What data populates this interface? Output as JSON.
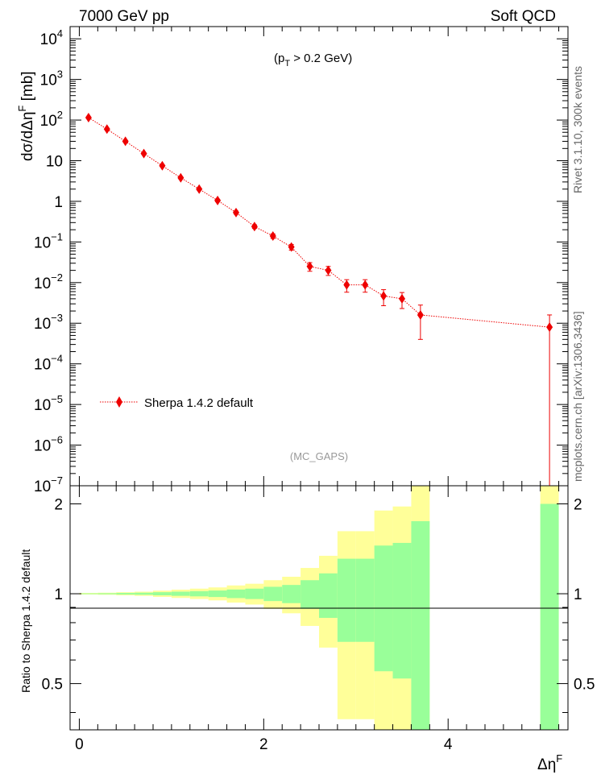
{
  "header": {
    "left": "7000 GeV pp",
    "right": "Soft QCD"
  },
  "annotations": {
    "cut_prefix": "(p",
    "cut_sub": "T",
    "cut_suffix": " > 0.2 GeV)",
    "analysis": "(MC_GAPS)",
    "side_rivet": "Rivet 3.1.10,  300k events",
    "side_mcplots": "mcplots.cern.ch [arXiv:1306.3436]"
  },
  "axes": {
    "top_ylabel": "dσ/dΔη",
    "top_ylabel_sup": "F",
    "top_ylabel_unit": " [mb]",
    "bottom_ylabel": "Ratio to Sherpa 1.4.2 default",
    "xlabel": "Δη",
    "xlabel_sup": "F"
  },
  "colors": {
    "series": "#ee0000",
    "band_inner": "#99ff99",
    "band_outer": "#ffff99"
  },
  "chart_data": [
    {
      "type": "scatter",
      "panel": "main",
      "yscale": "log",
      "xlim": [
        -0.1,
        5.3
      ],
      "ylim": [
        1e-07,
        20000
      ],
      "yticks": [
        {
          "v": 10000,
          "base": "10",
          "exp": "4"
        },
        {
          "v": 1000,
          "base": "10",
          "exp": "3"
        },
        {
          "v": 100,
          "base": "10",
          "exp": "2"
        },
        {
          "v": 10,
          "base": "10",
          "exp": ""
        },
        {
          "v": 1,
          "base": "1",
          "exp": ""
        },
        {
          "v": 0.1,
          "base": "10",
          "exp": "−1"
        },
        {
          "v": 0.01,
          "base": "10",
          "exp": "−2"
        },
        {
          "v": 0.001,
          "base": "10",
          "exp": "−3"
        },
        {
          "v": 0.0001,
          "base": "10",
          "exp": "−4"
        },
        {
          "v": 1e-05,
          "base": "10",
          "exp": "−5"
        },
        {
          "v": 1e-06,
          "base": "10",
          "exp": "−6"
        },
        {
          "v": 1e-07,
          "base": "10",
          "exp": "−7"
        }
      ],
      "legend": "top-left",
      "series": [
        {
          "name": "Sherpa 1.4.2 default",
          "x": [
            0.1,
            0.3,
            0.5,
            0.7,
            0.9,
            1.1,
            1.3,
            1.5,
            1.7,
            1.9,
            2.1,
            2.3,
            2.5,
            2.7,
            2.9,
            3.1,
            3.3,
            3.5,
            3.7,
            5.1
          ],
          "y": [
            115,
            60,
            30,
            15,
            7.5,
            3.8,
            2.0,
            1.05,
            0.53,
            0.24,
            0.14,
            0.075,
            0.025,
            0.02,
            0.0088,
            0.0088,
            0.0047,
            0.004,
            0.0016,
            0.0008
          ],
          "yerr_low": [
            3,
            2,
            1.2,
            0.6,
            0.35,
            0.2,
            0.12,
            0.07,
            0.045,
            0.025,
            0.018,
            0.012,
            0.006,
            0.005,
            0.003,
            0.003,
            0.002,
            0.0017,
            0.0012,
            0.0008
          ],
          "yerr_high": [
            3,
            2,
            1.2,
            0.6,
            0.35,
            0.2,
            0.12,
            0.07,
            0.045,
            0.025,
            0.018,
            0.012,
            0.006,
            0.005,
            0.003,
            0.003,
            0.002,
            0.0017,
            0.0012,
            0.0008
          ]
        }
      ]
    },
    {
      "type": "area",
      "panel": "ratio",
      "xlim": [
        -0.1,
        5.3
      ],
      "ylim": [
        0.35,
        2.3
      ],
      "yticks": [
        0.5,
        1,
        2
      ],
      "xticks": [
        0,
        2,
        4
      ],
      "bins": [
        0,
        0.2,
        0.4,
        0.6,
        0.8,
        1.0,
        1.2,
        1.4,
        1.6,
        1.8,
        2.0,
        2.2,
        2.4,
        2.6,
        2.8,
        3.0,
        3.2,
        3.4,
        3.6,
        3.8,
        5.0,
        5.2
      ],
      "green_up": [
        1.003,
        1.004,
        1.006,
        1.008,
        1.012,
        1.016,
        1.02,
        1.025,
        1.033,
        1.04,
        1.055,
        1.07,
        1.11,
        1.17,
        1.31,
        1.31,
        1.45,
        1.48,
        1.75,
        null,
        2.0
      ],
      "green_dn": [
        0.997,
        0.996,
        0.994,
        0.992,
        0.988,
        0.984,
        0.98,
        0.975,
        0.967,
        0.96,
        0.945,
        0.93,
        0.89,
        0.83,
        0.69,
        0.69,
        0.55,
        0.52,
        0.25,
        null,
        0.01
      ],
      "yellow_up": [
        1.006,
        1.008,
        1.012,
        1.016,
        1.024,
        1.032,
        1.04,
        1.05,
        1.066,
        1.08,
        1.11,
        1.14,
        1.22,
        1.34,
        1.62,
        1.62,
        1.9,
        1.96,
        2.5,
        null,
        4.0
      ],
      "yellow_dn": [
        0.994,
        0.992,
        0.988,
        0.984,
        0.976,
        0.968,
        0.96,
        0.95,
        0.934,
        0.92,
        0.89,
        0.86,
        0.78,
        0.66,
        0.38,
        0.38,
        0.1,
        0.04,
        0.01,
        null,
        0.01
      ]
    }
  ]
}
